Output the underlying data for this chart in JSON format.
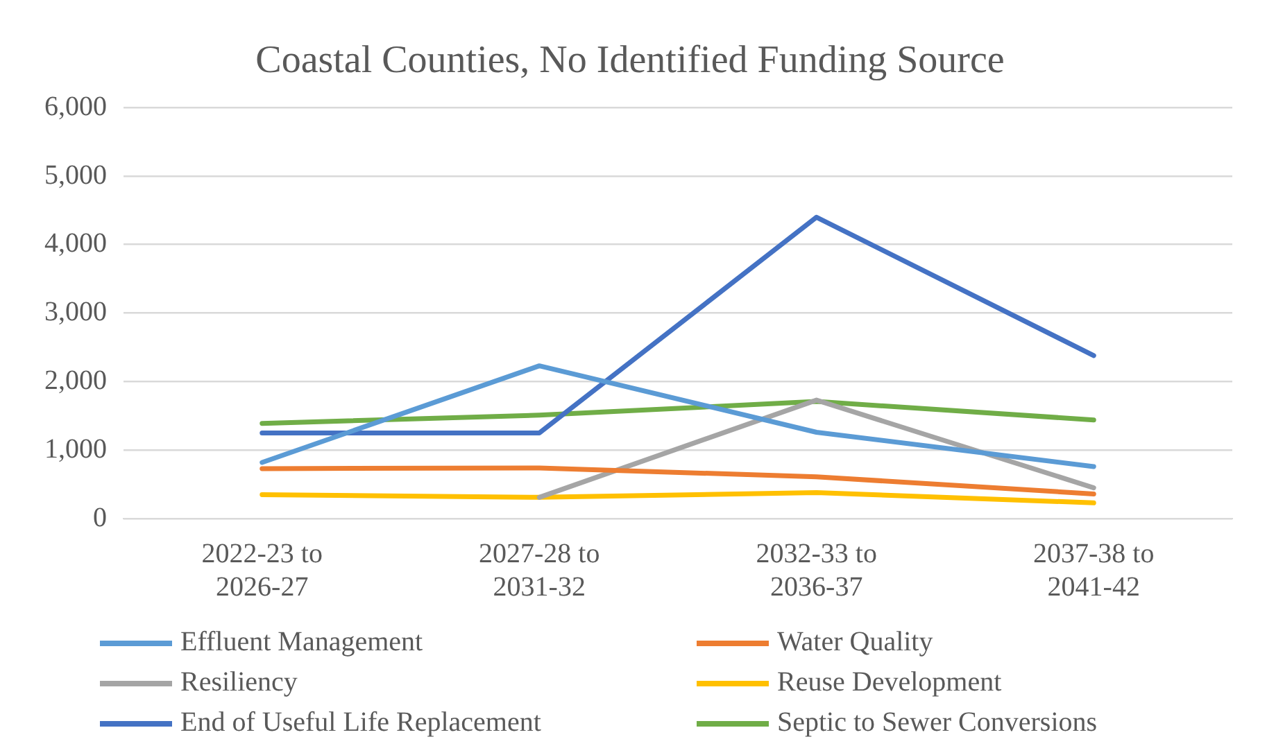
{
  "chart_data": {
    "type": "line",
    "title": "Coastal Counties, No Identified Funding Source",
    "categories": [
      "2022-23 to 2026-27",
      "2027-28 to 2031-32",
      "2032-33 to 2036-37",
      "2037-38 to 2041-42"
    ],
    "series": [
      {
        "name": "Effluent Management",
        "color": "#5b9bd5",
        "values": [
          820,
          2230,
          1260,
          760
        ]
      },
      {
        "name": "Water Quality",
        "color": "#ed7d31",
        "values": [
          730,
          740,
          610,
          360
        ]
      },
      {
        "name": "Resiliency",
        "color": "#a5a5a5",
        "values": [
          null,
          310,
          1730,
          450
        ]
      },
      {
        "name": "Reuse Development",
        "color": "#ffc000",
        "values": [
          350,
          310,
          380,
          230
        ]
      },
      {
        "name": "End of Useful Life Replacement",
        "color": "#4472c4",
        "values": [
          1250,
          1250,
          4400,
          2380
        ]
      },
      {
        "name": "Septic to Sewer Conversions",
        "color": "#70ad47",
        "values": [
          1390,
          1510,
          1710,
          1440
        ]
      }
    ],
    "ylim": [
      0,
      6000
    ],
    "yticks": [
      0,
      {
        "value": 1000,
        "label": "1,000"
      },
      {
        "value": 2000,
        "label": "2,000"
      },
      {
        "value": 3000,
        "label": "3,000"
      },
      {
        "value": 4000,
        "label": "4,000"
      },
      {
        "value": 5000,
        "label": "5,000"
      },
      {
        "value": 6000,
        "label": "6,000"
      }
    ],
    "grid": "y",
    "legend": "bottom",
    "marker": "none",
    "line_style": "solid"
  }
}
